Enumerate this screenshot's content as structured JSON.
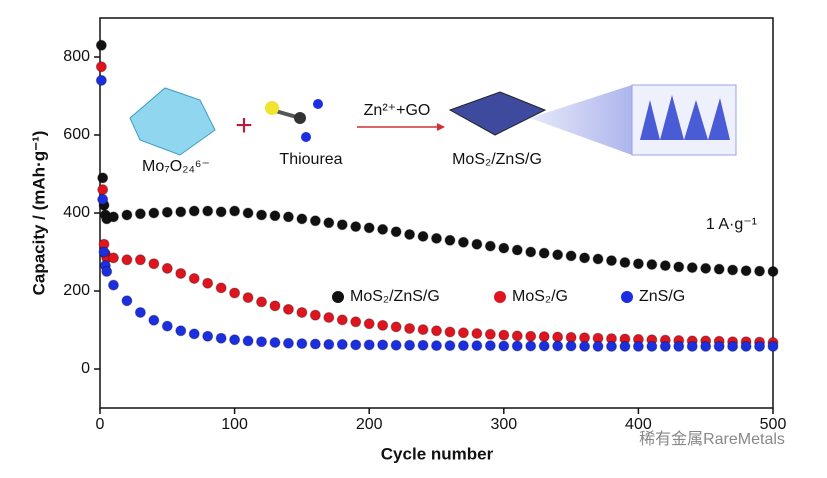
{
  "chart_data": {
    "type": "scatter",
    "xlabel": "Cycle number",
    "ylabel": "Capacity / (mAh·g⁻¹)",
    "xlim": [
      0,
      500
    ],
    "xticks": [
      0,
      100,
      200,
      300,
      400,
      500
    ],
    "ylim": [
      -100,
      900
    ],
    "yticks": [
      0,
      200,
      400,
      600,
      800
    ],
    "annotations": [
      "1 A·g⁻¹"
    ],
    "legend": "center-right",
    "x": [
      1,
      2,
      3,
      4,
      5,
      10,
      20,
      30,
      40,
      50,
      60,
      70,
      80,
      90,
      100,
      110,
      120,
      130,
      140,
      150,
      160,
      170,
      180,
      190,
      200,
      210,
      220,
      230,
      240,
      250,
      260,
      270,
      280,
      290,
      300,
      310,
      320,
      330,
      340,
      350,
      360,
      370,
      380,
      390,
      400,
      410,
      420,
      430,
      440,
      450,
      460,
      470,
      480,
      490,
      500
    ],
    "series": [
      {
        "name": "MoS₂/ZnS/G",
        "color": "#111111",
        "values": [
          830,
          490,
          420,
          395,
          385,
          390,
          395,
          398,
          400,
          402,
          403,
          405,
          405,
          403,
          405,
          400,
          395,
          393,
          390,
          385,
          380,
          375,
          370,
          365,
          362,
          358,
          352,
          345,
          340,
          335,
          330,
          325,
          320,
          315,
          310,
          305,
          300,
          297,
          293,
          290,
          285,
          282,
          278,
          273,
          270,
          268,
          265,
          262,
          260,
          258,
          256,
          254,
          252,
          251,
          250
        ]
      },
      {
        "name": "MoS₂/G",
        "color": "#e0141e",
        "values": [
          775,
          460,
          320,
          295,
          285,
          285,
          280,
          280,
          270,
          258,
          245,
          232,
          220,
          208,
          195,
          183,
          172,
          162,
          153,
          145,
          138,
          132,
          126,
          121,
          116,
          112,
          108,
          104,
          101,
          98,
          95,
          93,
          91,
          89,
          87,
          85,
          84,
          83,
          82,
          81,
          80,
          79,
          78,
          77,
          76,
          75,
          74,
          73,
          72,
          72,
          71,
          70,
          70,
          69,
          68
        ]
      },
      {
        "name": "ZnS/G",
        "color": "#1b2fe0",
        "values": [
          740,
          435,
          300,
          265,
          250,
          215,
          175,
          145,
          125,
          110,
          98,
          90,
          84,
          79,
          75,
          72,
          70,
          68,
          66,
          65,
          64,
          63,
          63,
          62,
          62,
          62,
          61,
          61,
          61,
          60,
          60,
          60,
          60,
          60,
          59,
          59,
          59,
          59,
          59,
          59,
          58,
          58,
          58,
          58,
          58,
          58,
          58,
          58,
          58,
          58,
          58,
          58,
          58,
          58,
          58
        ]
      }
    ]
  },
  "schematic": {
    "labels": [
      "Mo₇O₂₄⁶⁻",
      "Thiourea",
      "Zn²⁺+GO",
      "MoS₂/ZnS/G"
    ]
  },
  "watermark": "稀有金属RareMetals"
}
